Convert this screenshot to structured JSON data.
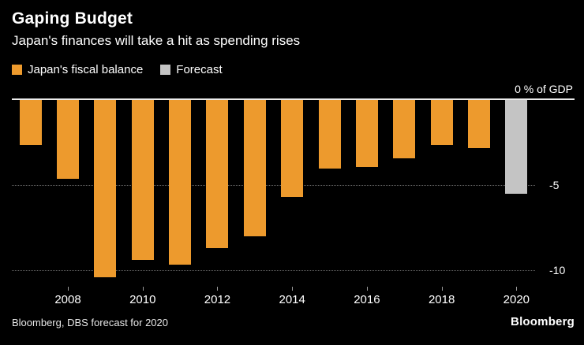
{
  "header": {
    "title": "Gaping Budget",
    "subtitle": "Japan's finances will take a hit as spending rises"
  },
  "legend": {
    "items": [
      {
        "label": "Japan's fiscal balance",
        "color": "#ED9A2D"
      },
      {
        "label": "Forecast",
        "color": "#C4C4C4"
      }
    ]
  },
  "axis": {
    "zero_label": "0 % of GDP",
    "y_tick_labels": [
      "-5",
      "-10"
    ]
  },
  "chart_data": {
    "type": "bar",
    "title": "Gaping Budget",
    "subtitle": "Japan's finances will take a hit as spending rises",
    "xlabel": "",
    "ylabel": "% of GDP",
    "ylim": [
      0,
      -11
    ],
    "y_gridlines": [
      -5,
      -10
    ],
    "grid": "dotted horizontal",
    "legend_position": "top",
    "categories": [
      "2007",
      "2008",
      "2009",
      "2010",
      "2011",
      "2012",
      "2013",
      "2014",
      "2015",
      "2016",
      "2017",
      "2018",
      "2019",
      "2020"
    ],
    "series": [
      {
        "name": "Japan's fiscal balance",
        "color": "#ED9A2D",
        "values": [
          -2.6,
          -4.6,
          -10.4,
          -9.4,
          -9.7,
          -8.7,
          -8.0,
          -5.7,
          -4.0,
          -3.9,
          -3.4,
          -2.6,
          -2.8,
          null
        ]
      },
      {
        "name": "Forecast",
        "color": "#C4C4C4",
        "values": [
          null,
          null,
          null,
          null,
          null,
          null,
          null,
          null,
          null,
          null,
          null,
          null,
          null,
          -5.5
        ]
      }
    ],
    "x_tick_labels": [
      "2008",
      "2010",
      "2012",
      "2014",
      "2016",
      "2018",
      "2020"
    ]
  },
  "footer": {
    "source": "Bloomberg, DBS forecast for 2020",
    "brand": "Bloomberg"
  }
}
